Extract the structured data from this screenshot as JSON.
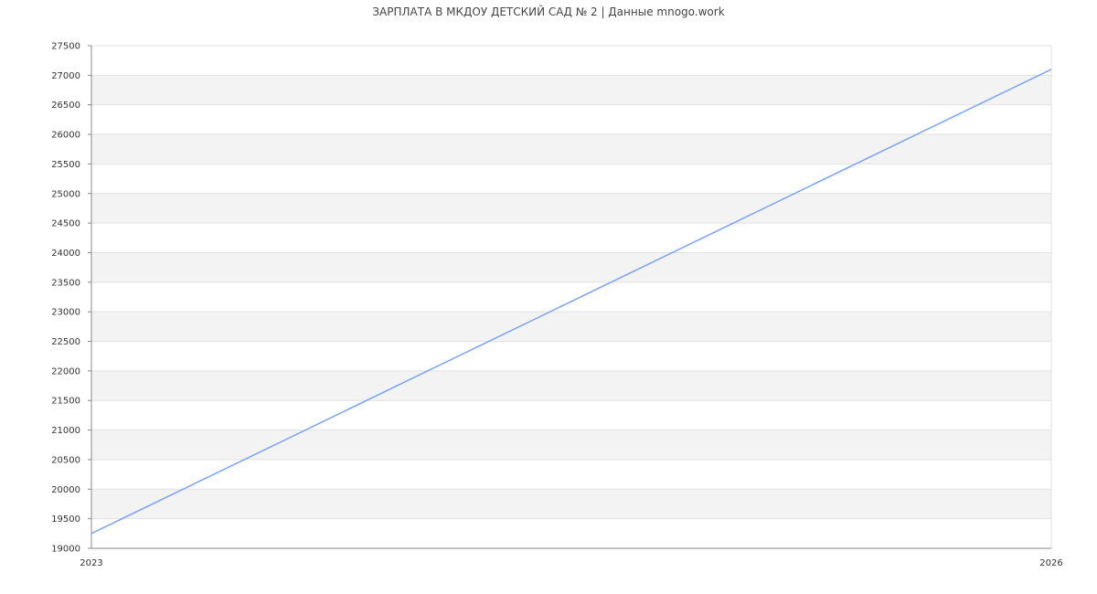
{
  "chart_data": {
    "type": "line",
    "title": "ЗАРПЛАТА В МКДОУ ДЕТСКИЙ САД № 2 | Данные mnogo.work",
    "x": [
      "2023",
      "2026"
    ],
    "series": [
      {
        "values": [
          19250,
          27100
        ],
        "color": "#7aa2f7"
      }
    ],
    "ylim": [
      19000,
      27500
    ],
    "yticks": [
      19000,
      19500,
      20000,
      20500,
      21000,
      21500,
      22000,
      22500,
      23000,
      23500,
      24000,
      24500,
      25000,
      25500,
      26000,
      26500,
      27000,
      27500
    ],
    "xticks": [
      "2023",
      "2026"
    ],
    "grid": true,
    "band_color": "#f3f3f3"
  }
}
